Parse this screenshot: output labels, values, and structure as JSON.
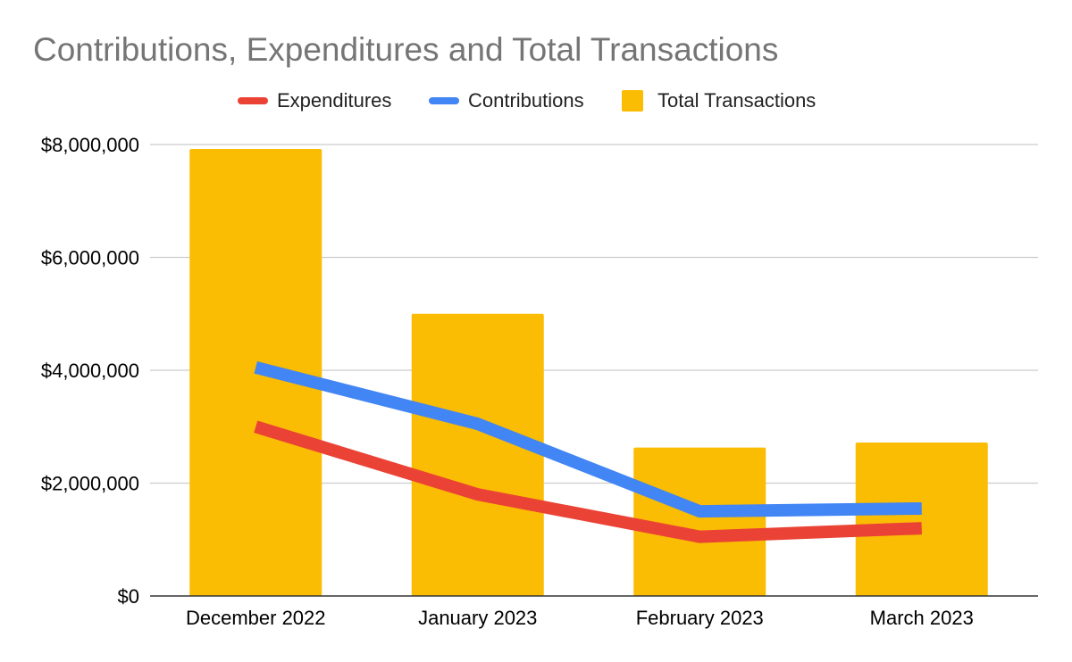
{
  "chart_data": {
    "type": "bar",
    "title": "Contributions, Expenditures and Total Transactions",
    "xlabel": "",
    "ylabel": "",
    "categories": [
      "December 2022",
      "January 2023",
      "February 2023",
      "March 2023"
    ],
    "ylim": [
      0,
      8000000
    ],
    "yticks": [
      0,
      2000000,
      4000000,
      6000000,
      8000000
    ],
    "ytick_labels": [
      "$0",
      "$2,000,000",
      "$4,000,000",
      "$6,000,000",
      "$8,000,000"
    ],
    "grid": true,
    "legend_position": "top-center",
    "series": [
      {
        "name": "Expenditures",
        "type": "line",
        "color": "#ea4335",
        "values": [
          3000000,
          1800000,
          1050000,
          1200000
        ]
      },
      {
        "name": "Contributions",
        "type": "line",
        "color": "#4285f4",
        "values": [
          4050000,
          3050000,
          1500000,
          1550000
        ]
      },
      {
        "name": "Total Transactions",
        "type": "bar",
        "color": "#fbbc04",
        "values": [
          7920000,
          5000000,
          2630000,
          2720000
        ]
      }
    ]
  }
}
